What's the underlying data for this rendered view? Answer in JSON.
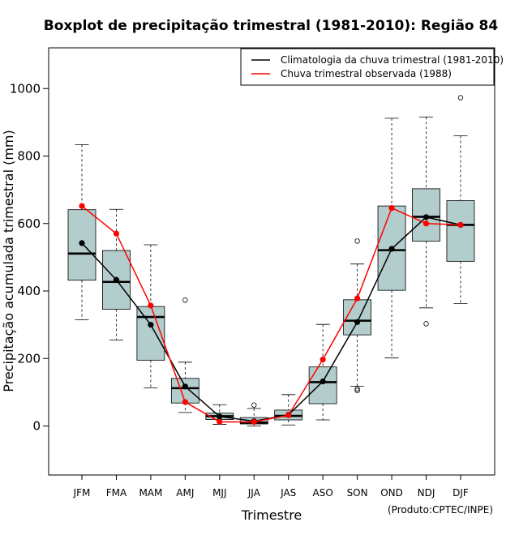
{
  "chart_data": {
    "type": "boxplot",
    "title": "Boxplot de precipitação trimestral (1981-2010): Região 84",
    "xlabel": "Trimestre",
    "ylabel": "Precipitação acumulada trimestral (mm)",
    "credit": "(Produto:CPTEC/INPE)",
    "ylim": [
      -150,
      1120
    ],
    "yticks": [
      0,
      200,
      400,
      600,
      800,
      1000
    ],
    "categories": [
      "JFM",
      "FMA",
      "MAM",
      "AMJ",
      "MJJ",
      "JJA",
      "JAS",
      "ASO",
      "SON",
      "OND",
      "NDJ",
      "DJF"
    ],
    "boxes": [
      {
        "whisker_low": 315,
        "q1": 432,
        "median": 511,
        "q3": 641,
        "whisker_high": 834,
        "outliers": []
      },
      {
        "whisker_low": 255,
        "q1": 346,
        "median": 427,
        "q3": 520,
        "whisker_high": 642,
        "outliers": []
      },
      {
        "whisker_low": 113,
        "q1": 195,
        "median": 323,
        "q3": 354,
        "whisker_high": 537,
        "outliers": []
      },
      {
        "whisker_low": 40,
        "q1": 68,
        "median": 112,
        "q3": 141,
        "whisker_high": 189,
        "outliers": [
          373
        ]
      },
      {
        "whisker_low": 5,
        "q1": 19,
        "median": 29,
        "q3": 38,
        "whisker_high": 63,
        "outliers": []
      },
      {
        "whisker_low": 0,
        "q1": 6,
        "median": 10,
        "q3": 25,
        "whisker_high": 52,
        "outliers": [
          62
        ]
      },
      {
        "whisker_low": 3,
        "q1": 18,
        "median": 30,
        "q3": 47,
        "whisker_high": 93,
        "outliers": []
      },
      {
        "whisker_low": 18,
        "q1": 66,
        "median": 130,
        "q3": 175,
        "whisker_high": 301,
        "outliers": []
      },
      {
        "whisker_low": 118,
        "q1": 270,
        "median": 312,
        "q3": 374,
        "whisker_high": 480,
        "outliers": [
          548,
          110,
          105
        ]
      },
      {
        "whisker_low": 202,
        "q1": 402,
        "median": 521,
        "q3": 652,
        "whisker_high": 912,
        "outliers": []
      },
      {
        "whisker_low": 350,
        "q1": 548,
        "median": 620,
        "q3": 703,
        "whisker_high": 916,
        "outliers": [
          303
        ]
      },
      {
        "whisker_low": 363,
        "q1": 488,
        "median": 596,
        "q3": 668,
        "whisker_high": 860,
        "outliers": [
          973
        ]
      }
    ],
    "series": [
      {
        "name": "Climatologia da chuva trimestral (1981-2010)",
        "color": "#000000",
        "values": [
          542,
          433,
          300,
          117,
          28,
          14,
          33,
          132,
          308,
          525,
          619,
          596
        ]
      },
      {
        "name": "Chuva trimestral observada (1988)",
        "color": "#ff0000",
        "values": [
          652,
          570,
          357,
          71,
          12,
          12,
          32,
          197,
          378,
          646,
          600,
          596
        ]
      }
    ],
    "box_fill": "#b3cccc",
    "legend_position": "top-right"
  }
}
